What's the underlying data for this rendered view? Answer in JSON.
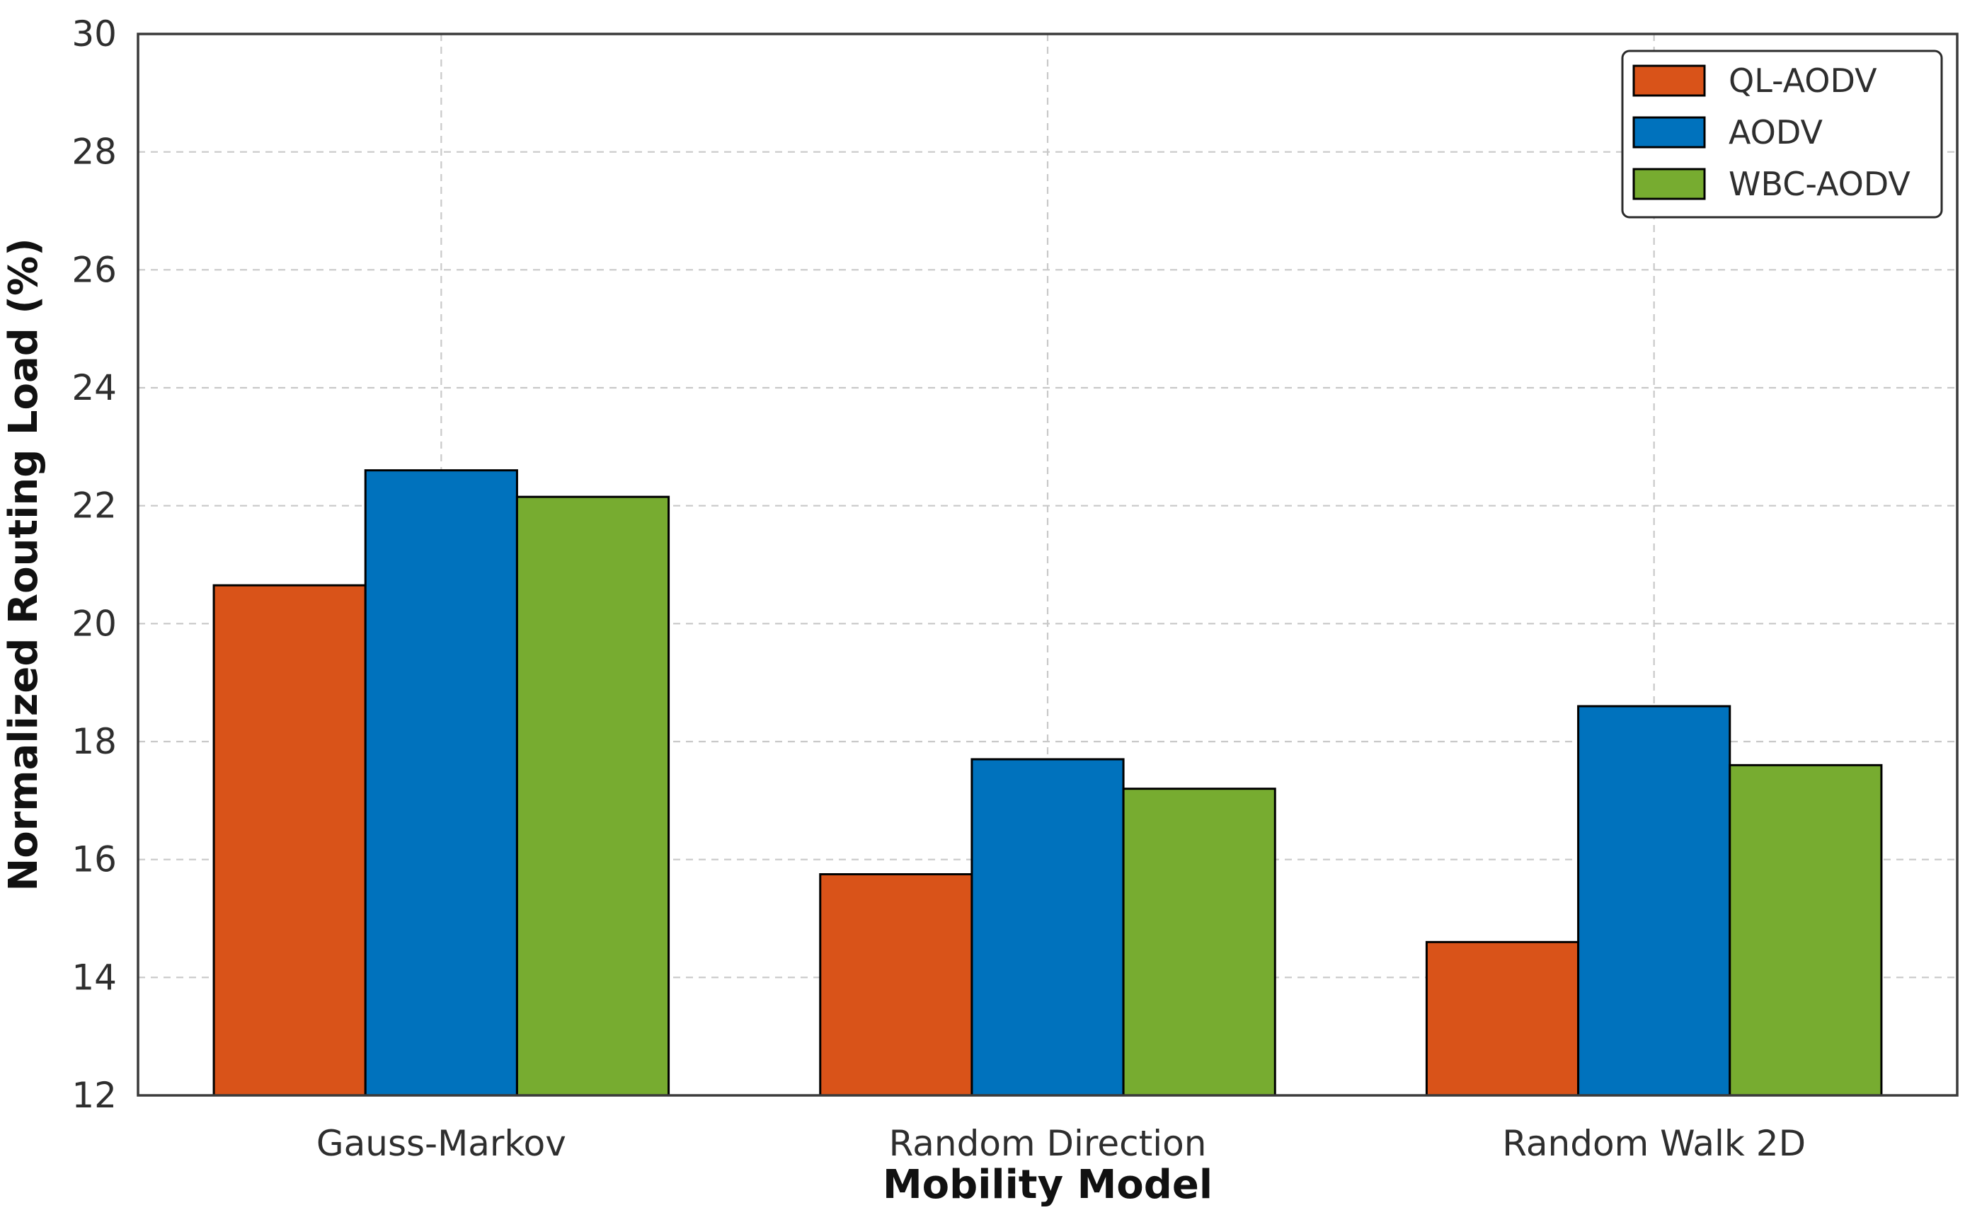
{
  "figure": {
    "background_color": "#ffffff"
  },
  "chart_data": {
    "type": "bar",
    "title": "",
    "xlabel": "Mobility Model",
    "ylabel": "Normalized Routing Load (%)",
    "categories": [
      "Gauss-Markov",
      "Random Direction",
      "Random Walk 2D"
    ],
    "series": [
      {
        "name": "QL-AODV",
        "color": "#D95319",
        "values": [
          20.65,
          15.75,
          14.6
        ]
      },
      {
        "name": "AODV",
        "color": "#0072BD",
        "values": [
          22.6,
          17.7,
          18.6
        ]
      },
      {
        "name": "WBC-AODV",
        "color": "#77AC30",
        "values": [
          22.15,
          17.2,
          17.6
        ]
      }
    ],
    "ylim": [
      12,
      30
    ],
    "yticks": [
      12,
      14,
      16,
      18,
      20,
      22,
      24,
      26,
      28,
      30
    ],
    "grid": true,
    "grid_style": "dashed",
    "grid_color": "#c9c9c9",
    "axis_color": "#3a3a3a",
    "text_color": "#2e2e2e",
    "label_color": "#111111",
    "bar_edge_color": "#000000",
    "legend_position": "upper right",
    "legend_border_color": "#2b2b2b",
    "legend_background": "#ffffff"
  }
}
